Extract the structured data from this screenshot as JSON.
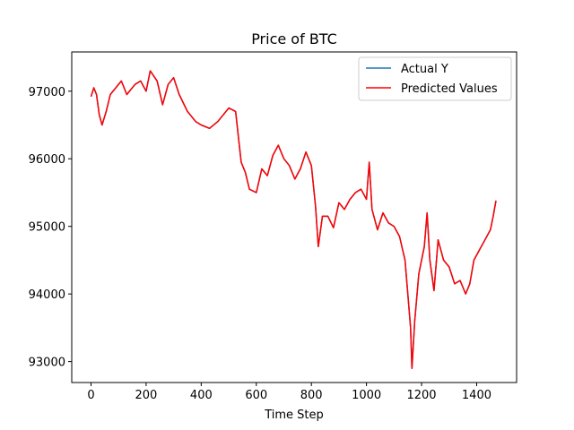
{
  "chart_data": {
    "type": "line",
    "title": "Price of BTC",
    "xlabel": "Time Step",
    "ylabel": "",
    "xlim": [
      -70,
      1545
    ],
    "ylim": [
      92690,
      97580
    ],
    "xticks": [
      0,
      200,
      400,
      600,
      800,
      1000,
      1200,
      1400
    ],
    "yticks": [
      93000,
      94000,
      95000,
      96000,
      97000
    ],
    "grid": false,
    "legend_position": "top-right",
    "series": [
      {
        "name": "Actual Y",
        "color": "#1f77b4",
        "points": [
          [
            0,
            96920
          ],
          [
            10,
            97050
          ],
          [
            20,
            96950
          ],
          [
            30,
            96650
          ],
          [
            40,
            96500
          ],
          [
            55,
            96700
          ],
          [
            70,
            96950
          ],
          [
            90,
            97050
          ],
          [
            110,
            97150
          ],
          [
            130,
            96950
          ],
          [
            160,
            97100
          ],
          [
            180,
            97150
          ],
          [
            200,
            97000
          ],
          [
            215,
            97300
          ],
          [
            240,
            97150
          ],
          [
            260,
            96800
          ],
          [
            280,
            97100
          ],
          [
            300,
            97200
          ],
          [
            320,
            96950
          ],
          [
            350,
            96700
          ],
          [
            380,
            96550
          ],
          [
            400,
            96500
          ],
          [
            430,
            96450
          ],
          [
            460,
            96550
          ],
          [
            500,
            96750
          ],
          [
            525,
            96700
          ],
          [
            545,
            95950
          ],
          [
            560,
            95800
          ],
          [
            575,
            95550
          ],
          [
            600,
            95500
          ],
          [
            620,
            95850
          ],
          [
            640,
            95750
          ],
          [
            660,
            96050
          ],
          [
            680,
            96200
          ],
          [
            700,
            96000
          ],
          [
            720,
            95900
          ],
          [
            740,
            95700
          ],
          [
            760,
            95850
          ],
          [
            780,
            96100
          ],
          [
            800,
            95900
          ],
          [
            815,
            95300
          ],
          [
            825,
            94700
          ],
          [
            840,
            95150
          ],
          [
            860,
            95150
          ],
          [
            880,
            94980
          ],
          [
            900,
            95350
          ],
          [
            920,
            95250
          ],
          [
            940,
            95400
          ],
          [
            960,
            95500
          ],
          [
            980,
            95550
          ],
          [
            1000,
            95400
          ],
          [
            1010,
            95950
          ],
          [
            1020,
            95250
          ],
          [
            1040,
            94950
          ],
          [
            1060,
            95200
          ],
          [
            1080,
            95050
          ],
          [
            1100,
            95000
          ],
          [
            1120,
            94850
          ],
          [
            1140,
            94500
          ],
          [
            1150,
            94000
          ],
          [
            1160,
            93500
          ],
          [
            1165,
            92900
          ],
          [
            1175,
            93600
          ],
          [
            1190,
            94300
          ],
          [
            1210,
            94700
          ],
          [
            1220,
            95200
          ],
          [
            1230,
            94500
          ],
          [
            1245,
            94050
          ],
          [
            1260,
            94800
          ],
          [
            1280,
            94500
          ],
          [
            1300,
            94400
          ],
          [
            1320,
            94150
          ],
          [
            1340,
            94200
          ],
          [
            1360,
            94000
          ],
          [
            1375,
            94150
          ],
          [
            1390,
            94500
          ],
          [
            1410,
            94650
          ],
          [
            1430,
            94800
          ],
          [
            1450,
            94950
          ],
          [
            1460,
            95150
          ],
          [
            1470,
            95380
          ]
        ]
      },
      {
        "name": "Predicted Values",
        "color": "#ff0000",
        "points": [
          [
            0,
            96920
          ],
          [
            10,
            97050
          ],
          [
            20,
            96950
          ],
          [
            30,
            96650
          ],
          [
            40,
            96500
          ],
          [
            55,
            96700
          ],
          [
            70,
            96950
          ],
          [
            90,
            97050
          ],
          [
            110,
            97150
          ],
          [
            130,
            96950
          ],
          [
            160,
            97100
          ],
          [
            180,
            97150
          ],
          [
            200,
            97000
          ],
          [
            215,
            97300
          ],
          [
            240,
            97150
          ],
          [
            260,
            96800
          ],
          [
            280,
            97100
          ],
          [
            300,
            97200
          ],
          [
            320,
            96950
          ],
          [
            350,
            96700
          ],
          [
            380,
            96550
          ],
          [
            400,
            96500
          ],
          [
            430,
            96450
          ],
          [
            460,
            96550
          ],
          [
            500,
            96750
          ],
          [
            525,
            96700
          ],
          [
            545,
            95950
          ],
          [
            560,
            95800
          ],
          [
            575,
            95550
          ],
          [
            600,
            95500
          ],
          [
            620,
            95850
          ],
          [
            640,
            95750
          ],
          [
            660,
            96050
          ],
          [
            680,
            96200
          ],
          [
            700,
            96000
          ],
          [
            720,
            95900
          ],
          [
            740,
            95700
          ],
          [
            760,
            95850
          ],
          [
            780,
            96100
          ],
          [
            800,
            95900
          ],
          [
            815,
            95300
          ],
          [
            825,
            94700
          ],
          [
            840,
            95150
          ],
          [
            860,
            95150
          ],
          [
            880,
            94980
          ],
          [
            900,
            95350
          ],
          [
            920,
            95250
          ],
          [
            940,
            95400
          ],
          [
            960,
            95500
          ],
          [
            980,
            95550
          ],
          [
            1000,
            95400
          ],
          [
            1010,
            95950
          ],
          [
            1020,
            95250
          ],
          [
            1040,
            94950
          ],
          [
            1060,
            95200
          ],
          [
            1080,
            95050
          ],
          [
            1100,
            95000
          ],
          [
            1120,
            94850
          ],
          [
            1140,
            94500
          ],
          [
            1150,
            94000
          ],
          [
            1160,
            93500
          ],
          [
            1165,
            92900
          ],
          [
            1175,
            93600
          ],
          [
            1190,
            94300
          ],
          [
            1210,
            94700
          ],
          [
            1220,
            95200
          ],
          [
            1230,
            94500
          ],
          [
            1245,
            94050
          ],
          [
            1260,
            94800
          ],
          [
            1280,
            94500
          ],
          [
            1300,
            94400
          ],
          [
            1320,
            94150
          ],
          [
            1340,
            94200
          ],
          [
            1360,
            94000
          ],
          [
            1375,
            94150
          ],
          [
            1390,
            94500
          ],
          [
            1410,
            94650
          ],
          [
            1430,
            94800
          ],
          [
            1450,
            94950
          ],
          [
            1460,
            95150
          ],
          [
            1470,
            95380
          ]
        ]
      }
    ]
  }
}
